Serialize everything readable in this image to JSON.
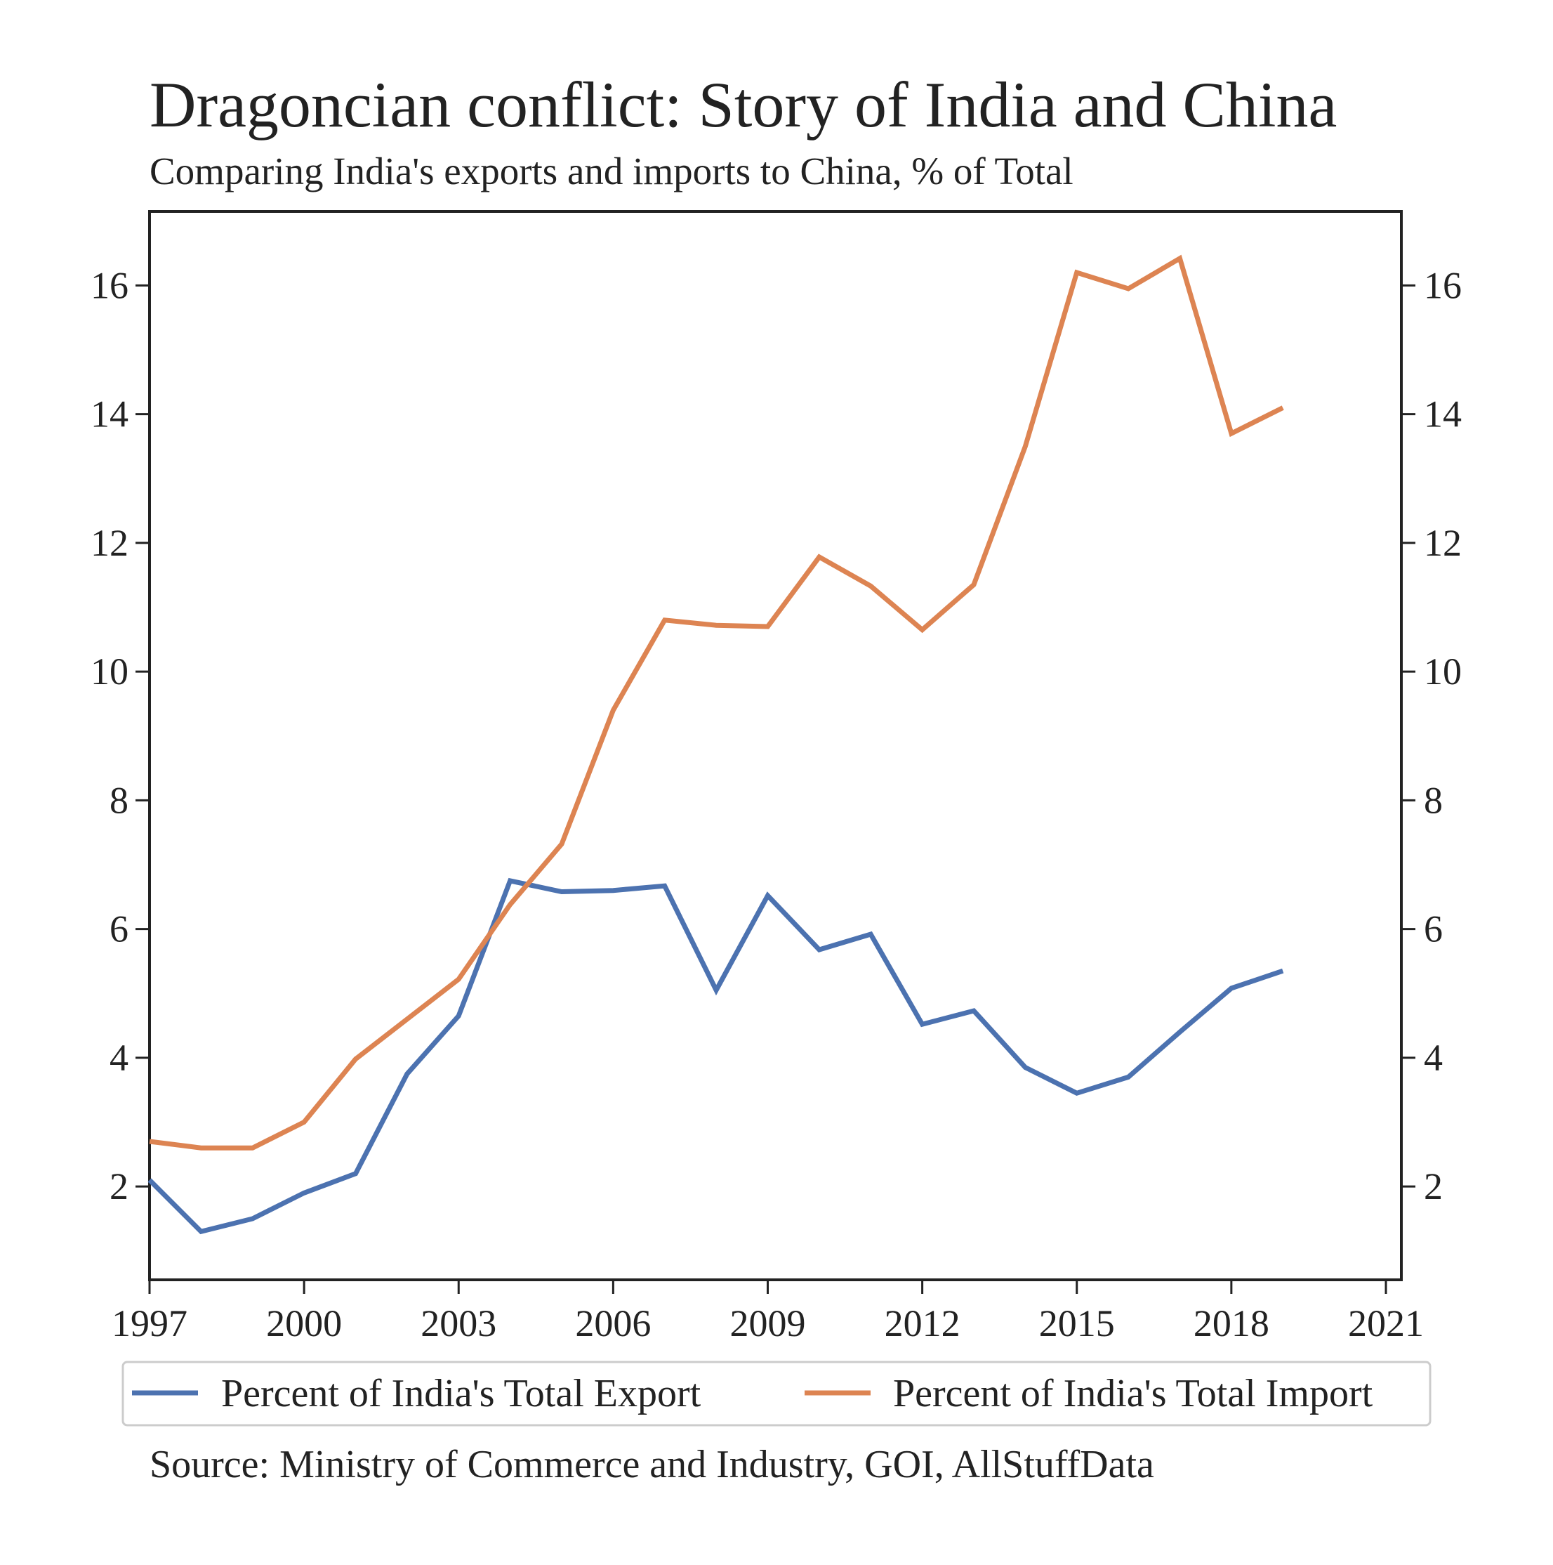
{
  "chart_data": {
    "type": "line",
    "title": "Dragoncian conflict: Story of India and China",
    "subtitle": "Comparing India's exports and imports to China, % of Total",
    "source": "Source: Ministry of Commerce and Industry, GOI, AllStuffData",
    "x": [
      1997,
      1998,
      1999,
      2000,
      2001,
      2002,
      2003,
      2004,
      2005,
      2006,
      2007,
      2008,
      2009,
      2010,
      2011,
      2012,
      2013,
      2014,
      2015,
      2016,
      2017,
      2018,
      2019
    ],
    "series": [
      {
        "name": "Percent of India's Total Export",
        "color": "#4c72b0",
        "values": [
          2.1,
          1.3,
          1.5,
          1.9,
          2.2,
          3.75,
          4.65,
          6.75,
          6.58,
          6.6,
          6.67,
          5.05,
          6.52,
          5.68,
          5.92,
          4.52,
          4.73,
          3.85,
          3.45,
          3.7,
          4.4,
          5.08,
          5.35
        ]
      },
      {
        "name": "Percent of India's Total Import",
        "color": "#dd8452",
        "values": [
          2.7,
          2.6,
          2.6,
          3.0,
          3.98,
          4.6,
          5.22,
          6.38,
          7.32,
          9.4,
          10.8,
          10.72,
          10.7,
          11.78,
          11.33,
          10.65,
          11.35,
          13.5,
          16.2,
          15.95,
          16.42,
          13.7,
          14.1
        ]
      }
    ],
    "xticks": [
      1997,
      2000,
      2003,
      2006,
      2009,
      2012,
      2015,
      2018,
      2021
    ],
    "yticks": [
      2,
      4,
      6,
      8,
      10,
      12,
      14,
      16
    ],
    "xlim": [
      1997,
      2021.3
    ],
    "ylim": [
      0.55,
      17.15
    ],
    "grid": false,
    "dual_y_axis_ticks": true,
    "legend_position": "bottom"
  }
}
